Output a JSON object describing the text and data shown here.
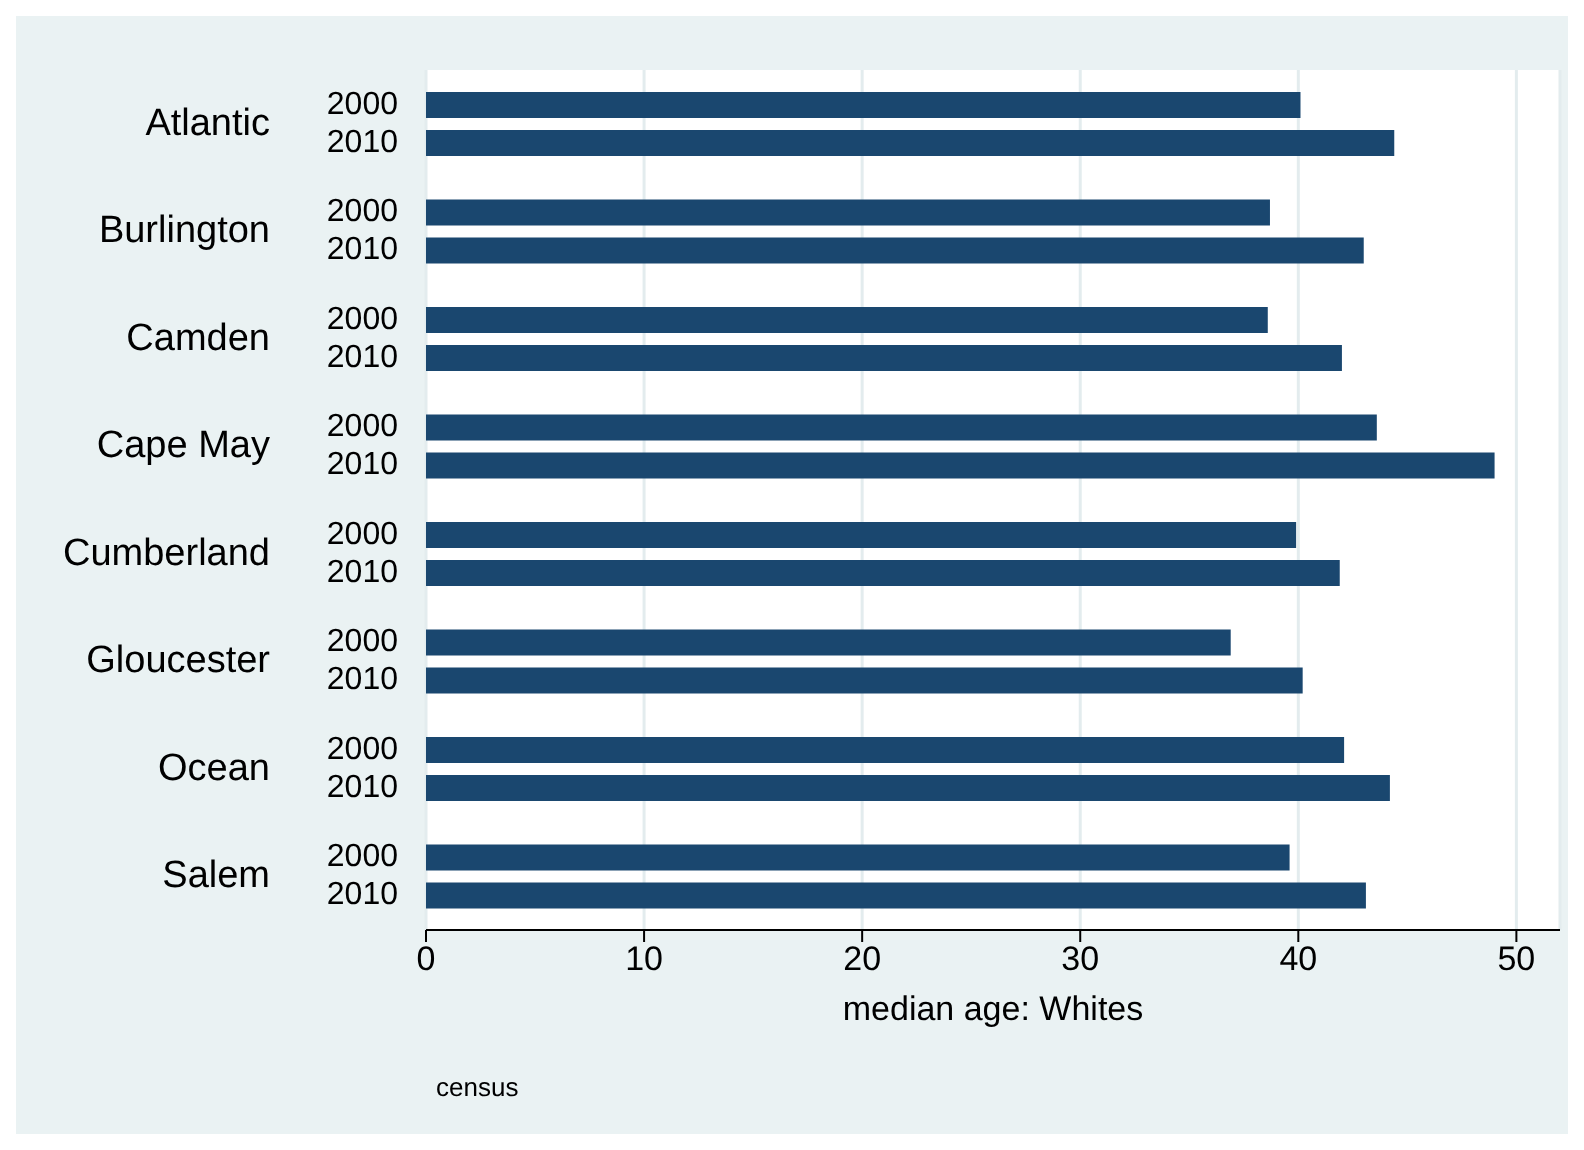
{
  "chart_data": {
    "type": "bar",
    "orientation": "horizontal",
    "xlabel": "median age: Whites",
    "categories": [
      "Atlantic",
      "Burlington",
      "Camden",
      "Cape May",
      "Cumberland",
      "Gloucester",
      "Ocean",
      "Salem"
    ],
    "series": [
      {
        "name": "2000",
        "color": "#1a476f",
        "values": [
          40.1,
          38.7,
          38.6,
          43.6,
          39.9,
          36.9,
          42.1,
          39.6
        ]
      },
      {
        "name": "2010",
        "color": "#1a476f",
        "values": [
          44.4,
          43.0,
          42.0,
          49.0,
          41.9,
          40.2,
          44.2,
          43.1
        ]
      }
    ],
    "xlim": [
      0,
      52
    ],
    "xticks": [
      0,
      10,
      20,
      30,
      40,
      50
    ],
    "grid": "x",
    "annotations": [
      "census"
    ]
  }
}
